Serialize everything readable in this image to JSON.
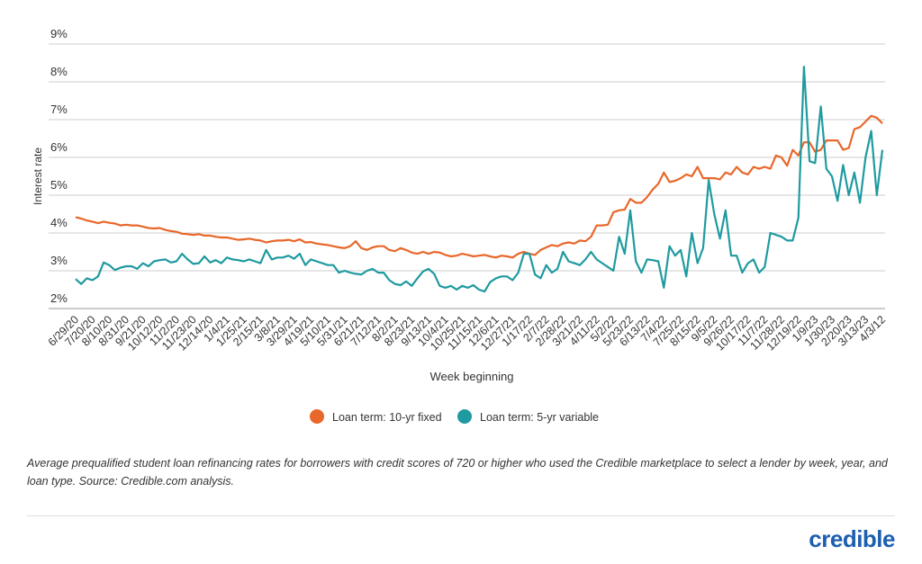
{
  "chart_data": {
    "type": "line",
    "x_label": "Week beginning",
    "y_label": "Interest rate",
    "categories": [
      "6/29/20",
      null,
      null,
      "7/20/20",
      null,
      null,
      "8/10/20",
      null,
      null,
      "8/31/20",
      null,
      null,
      "9/21/20",
      null,
      null,
      "10/12/20",
      null,
      null,
      "11/2/20",
      null,
      null,
      "11/23/20",
      null,
      null,
      "12/14/20",
      null,
      null,
      "1/4/21",
      null,
      null,
      "1/25/21",
      null,
      null,
      "2/15/21",
      null,
      null,
      "3/8/21",
      null,
      null,
      "3/29/21",
      null,
      null,
      "4/19/21",
      null,
      null,
      "5/10/21",
      null,
      null,
      "5/31/21",
      null,
      null,
      "6/21/21",
      null,
      null,
      "7/12/21",
      null,
      null,
      "8/2/21",
      null,
      null,
      "8/23/21",
      null,
      null,
      "9/13/21",
      null,
      null,
      "10/4/21",
      null,
      null,
      "10/25/21",
      null,
      null,
      "11/15/21",
      null,
      null,
      "12/6/21",
      null,
      null,
      "12/27/21",
      null,
      null,
      "1/17/22",
      null,
      null,
      "2/7/22",
      null,
      null,
      "2/28/22",
      null,
      null,
      "3/21/22",
      null,
      null,
      "4/11/22",
      null,
      null,
      "5/2/22",
      null,
      null,
      "5/23/22",
      null,
      null,
      "6/13/22",
      null,
      null,
      "7/4/22",
      null,
      null,
      "7/25/22",
      null,
      null,
      "8/15/22",
      null,
      null,
      "9/5/22",
      null,
      null,
      "9/26/22",
      null,
      null,
      "10/17/22",
      null,
      null,
      "11/7/22",
      null,
      null,
      "11/28/22",
      null,
      null,
      "12/19/22",
      null,
      null,
      "1/9/23",
      null,
      null,
      "1/30/23",
      null,
      null,
      "2/20/23",
      null,
      null,
      "3/13/23",
      null,
      null,
      "4/3/12"
    ],
    "series": [
      {
        "name": "Loan term: 10-yr fixed",
        "color": "#e8672a",
        "values": [
          4.42,
          4.38,
          4.33,
          4.3,
          4.26,
          4.3,
          4.27,
          4.25,
          4.2,
          4.22,
          4.2,
          4.2,
          4.17,
          4.13,
          4.12,
          4.13,
          4.08,
          4.05,
          4.03,
          3.98,
          3.97,
          3.95,
          3.97,
          3.93,
          3.93,
          3.9,
          3.88,
          3.88,
          3.85,
          3.82,
          3.83,
          3.85,
          3.82,
          3.8,
          3.75,
          3.78,
          3.8,
          3.8,
          3.82,
          3.78,
          3.83,
          3.75,
          3.76,
          3.72,
          3.7,
          3.68,
          3.65,
          3.62,
          3.6,
          3.65,
          3.78,
          3.6,
          3.55,
          3.62,
          3.65,
          3.65,
          3.55,
          3.52,
          3.6,
          3.55,
          3.48,
          3.45,
          3.5,
          3.45,
          3.5,
          3.48,
          3.42,
          3.38,
          3.4,
          3.45,
          3.42,
          3.38,
          3.4,
          3.42,
          3.38,
          3.35,
          3.4,
          3.38,
          3.35,
          3.45,
          3.5,
          3.45,
          3.42,
          3.55,
          3.62,
          3.68,
          3.65,
          3.72,
          3.75,
          3.72,
          3.8,
          3.78,
          3.9,
          4.2,
          4.2,
          4.22,
          4.55,
          4.6,
          4.62,
          4.9,
          4.8,
          4.8,
          4.95,
          5.15,
          5.3,
          5.6,
          5.35,
          5.38,
          5.45,
          5.55,
          5.5,
          5.75,
          5.45,
          5.45,
          5.45,
          5.42,
          5.6,
          5.55,
          5.75,
          5.6,
          5.55,
          5.75,
          5.7,
          5.75,
          5.7,
          6.05,
          6.0,
          5.78,
          6.2,
          6.05,
          6.4,
          6.4,
          6.15,
          6.2,
          6.45,
          6.45,
          6.45,
          6.2,
          6.25,
          6.75,
          6.8,
          6.95,
          7.1,
          7.05,
          6.9
        ]
      },
      {
        "name": "Loan term: 5-yr variable",
        "color": "#1f9aa0",
        "values": [
          2.78,
          2.65,
          2.8,
          2.75,
          2.85,
          3.22,
          3.15,
          3.02,
          3.08,
          3.12,
          3.12,
          3.05,
          3.2,
          3.12,
          3.25,
          3.28,
          3.3,
          3.22,
          3.25,
          3.45,
          3.3,
          3.18,
          3.2,
          3.38,
          3.22,
          3.28,
          3.2,
          3.35,
          3.3,
          3.28,
          3.25,
          3.3,
          3.25,
          3.2,
          3.55,
          3.3,
          3.35,
          3.35,
          3.4,
          3.32,
          3.45,
          3.15,
          3.3,
          3.25,
          3.2,
          3.15,
          3.15,
          2.95,
          3.0,
          2.95,
          2.92,
          2.9,
          3.0,
          3.05,
          2.95,
          2.95,
          2.75,
          2.65,
          2.62,
          2.72,
          2.6,
          2.8,
          2.98,
          3.05,
          2.92,
          2.6,
          2.55,
          2.6,
          2.5,
          2.6,
          2.55,
          2.62,
          2.5,
          2.45,
          2.7,
          2.8,
          2.85,
          2.85,
          2.75,
          2.95,
          3.45,
          3.45,
          2.9,
          2.8,
          3.15,
          2.95,
          3.05,
          3.5,
          3.25,
          3.2,
          3.15,
          3.3,
          3.5,
          3.3,
          3.2,
          3.1,
          3.0,
          3.9,
          3.45,
          4.6,
          3.25,
          2.95,
          3.3,
          3.28,
          3.25,
          2.55,
          3.65,
          3.4,
          3.55,
          2.85,
          4.0,
          3.2,
          3.6,
          5.4,
          4.5,
          3.85,
          4.6,
          3.4,
          3.4,
          2.95,
          3.2,
          3.3,
          2.95,
          3.1,
          4.0,
          3.95,
          3.9,
          3.8,
          3.8,
          4.4,
          8.4,
          5.9,
          5.85,
          7.35,
          5.7,
          5.5,
          4.85,
          5.8,
          5.0,
          5.6,
          4.8,
          6.0,
          6.7,
          5.0,
          6.2
        ]
      }
    ],
    "ylim": [
      2,
      9
    ],
    "yticks": [
      {
        "value": 2,
        "label": "2%"
      },
      {
        "value": 3,
        "label": "3%"
      },
      {
        "value": 4,
        "label": "4%"
      },
      {
        "value": 5,
        "label": "5%"
      },
      {
        "value": 6,
        "label": "6%"
      },
      {
        "value": 7,
        "label": "7%"
      },
      {
        "value": 8,
        "label": "8%"
      },
      {
        "value": 9,
        "label": "9%"
      }
    ],
    "grid": true,
    "legend": "bottom"
  },
  "footer": {
    "caption": "Average prequalified student loan refinancing rates for borrowers with credit scores of 720 or higher who used the Credible marketplace to select a lender by week, year, and loan type. Source: Credible.com analysis.",
    "logo": "credible"
  }
}
